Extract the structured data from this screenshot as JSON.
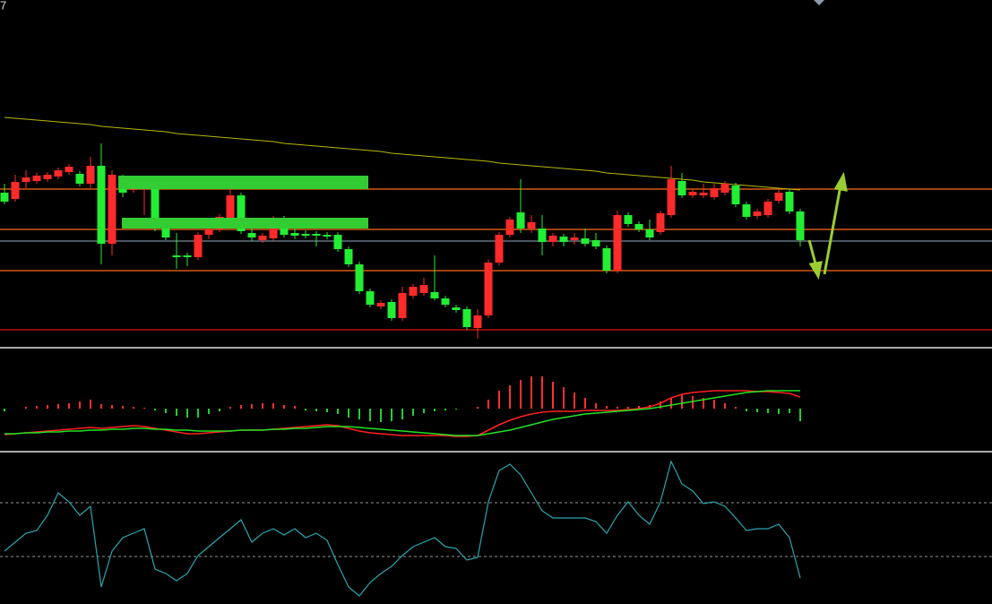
{
  "chart_data": [
    {
      "type": "candlestick",
      "title": "7",
      "ylim": [
        0,
        385
      ],
      "up_color": "#ff2a2a",
      "down_color": "#22ee33",
      "open": [
        170,
        163,
        182,
        183,
        185,
        188,
        193,
        191,
        180,
        200,
        113,
        187,
        173,
        175,
        175,
        130,
        100,
        100,
        98,
        123,
        129,
        140,
        167,
        125,
        117,
        119,
        141,
        125,
        124,
        124,
        123,
        123,
        107,
        90,
        60,
        43,
        48,
        30,
        55,
        58,
        59,
        52,
        42,
        40,
        19,
        33,
        92,
        123,
        148,
        130,
        130,
        115,
        121,
        117,
        119,
        117,
        108,
        83,
        145,
        135,
        129,
        126,
        145,
        183,
        167,
        167,
        165,
        170,
        178,
        157,
        144,
        145,
        161,
        171,
        149
      ],
      "high": [
        180,
        190,
        195,
        192,
        193,
        198,
        202,
        194,
        210,
        225,
        195,
        190,
        181,
        185,
        178,
        133,
        125,
        103,
        126,
        132,
        146,
        175,
        170,
        130,
        125,
        144,
        144,
        135,
        128,
        127,
        126,
        126,
        110,
        93,
        63,
        50,
        51,
        65,
        68,
        75,
        100,
        55,
        45,
        43,
        40,
        95,
        126,
        143,
        185,
        145,
        145,
        125,
        124,
        125,
        130,
        125,
        111,
        150,
        148,
        138,
        140,
        150,
        200,
        192,
        174,
        180,
        180,
        183,
        181,
        160,
        152,
        163,
        173,
        174,
        152
      ],
      "low": [
        157,
        160,
        175,
        180,
        182,
        185,
        190,
        177,
        175,
        90,
        100,
        165,
        170,
        145,
        127,
        117,
        85,
        88,
        95,
        118,
        126,
        135,
        124,
        116,
        114,
        116,
        120,
        118,
        119,
        110,
        118,
        104,
        87,
        57,
        42,
        40,
        27,
        27,
        52,
        55,
        50,
        42,
        36,
        17,
        7,
        30,
        89,
        120,
        125,
        125,
        100,
        110,
        110,
        112,
        110,
        107,
        80,
        80,
        132,
        126,
        117,
        123,
        142,
        164,
        164,
        164,
        162,
        167,
        154,
        140,
        141,
        142,
        158,
        146,
        110
      ],
      "close": [
        160,
        182,
        187,
        189,
        190,
        195,
        199,
        180,
        200,
        113,
        190,
        170,
        178,
        180,
        130,
        120,
        98,
        98,
        123,
        129,
        143,
        167,
        127,
        120,
        122,
        141,
        123,
        122,
        122,
        122,
        121,
        107,
        90,
        60,
        45,
        47,
        30,
        58,
        65,
        67,
        52,
        45,
        39,
        20,
        33,
        92,
        123,
        140,
        130,
        137,
        115,
        122,
        115,
        120,
        113,
        110,
        83,
        145,
        135,
        129,
        120,
        147,
        185,
        167,
        171,
        170,
        175,
        180,
        157,
        143,
        149,
        160,
        170,
        149,
        117
      ],
      "ma": {
        "color": "#b8b800",
        "values": [
          254,
          253,
          252,
          251,
          250,
          249,
          248,
          247,
          246,
          244,
          243,
          242,
          241,
          240,
          239,
          238,
          236,
          235,
          234,
          233,
          232,
          231,
          230,
          229,
          228,
          227,
          225,
          224,
          223,
          222,
          221,
          220,
          219,
          218,
          217,
          216,
          214,
          213,
          212,
          211,
          210,
          209,
          208,
          207,
          206,
          205,
          203,
          202,
          201,
          200,
          199,
          198,
          197,
          196,
          195,
          194,
          192,
          191,
          190,
          189,
          188,
          187,
          186,
          185,
          184,
          182,
          181,
          180,
          179,
          178,
          177,
          176,
          175,
          174,
          173
        ]
      },
      "hlines": [
        {
          "value": 174,
          "color": "#ff6a1a"
        },
        {
          "value": 129,
          "color": "#ff6a1a"
        },
        {
          "value": 83,
          "color": "#ff6a1a"
        },
        {
          "value": 17,
          "color": "#e01010"
        },
        {
          "value": 116,
          "color": "#7a8a9a"
        }
      ]
    },
    {
      "type": "macd",
      "ylim": [
        -49,
        66
      ],
      "histogram": {
        "up_color": "#ff3030",
        "down_color": "#20d030",
        "values": [
          -3,
          0,
          2,
          3,
          4,
          5,
          6,
          8,
          10,
          5,
          4,
          3,
          2,
          1,
          -2,
          -5,
          -8,
          -10,
          -10,
          -6,
          -3,
          2,
          4,
          5,
          6,
          6,
          4,
          3,
          -2,
          -3,
          -4,
          -6,
          -10,
          -12,
          -14,
          -15,
          -14,
          -12,
          -8,
          -5,
          -3,
          -2,
          -1,
          0,
          2,
          10,
          20,
          26,
          32,
          36,
          36,
          30,
          24,
          18,
          12,
          6,
          3,
          2,
          2,
          3,
          4,
          8,
          12,
          16,
          14,
          12,
          10,
          6,
          2,
          -3,
          -4,
          -5,
          -6,
          -5,
          -14
        ]
      },
      "series": [
        {
          "color": "#ff2020",
          "values": [
            -29,
            -28,
            -27,
            -26,
            -25,
            -24,
            -23,
            -22,
            -21,
            -22,
            -21,
            -20,
            -19,
            -20,
            -22,
            -24,
            -26,
            -28,
            -28,
            -27,
            -26,
            -25,
            -24,
            -24,
            -24,
            -23,
            -22,
            -21,
            -20,
            -19,
            -18,
            -19,
            -22,
            -25,
            -27,
            -28,
            -29,
            -30,
            -30,
            -30,
            -30,
            -30,
            -31,
            -31,
            -30,
            -24,
            -18,
            -13,
            -9,
            -6,
            -4,
            -3,
            -3,
            -3,
            -2,
            -2,
            -2,
            -2,
            -1,
            0,
            2,
            6,
            12,
            16,
            18,
            19,
            20,
            20,
            20,
            20,
            19,
            19,
            18,
            17,
            13
          ]
        },
        {
          "color": "#22e022",
          "values": [
            -28,
            -28,
            -27,
            -27,
            -26,
            -26,
            -25,
            -25,
            -24,
            -24,
            -23,
            -23,
            -22,
            -22,
            -23,
            -23,
            -24,
            -24,
            -25,
            -25,
            -25,
            -25,
            -24,
            -24,
            -24,
            -23,
            -23,
            -22,
            -22,
            -21,
            -20,
            -20,
            -20,
            -21,
            -22,
            -23,
            -24,
            -25,
            -26,
            -27,
            -28,
            -29,
            -30,
            -30,
            -30,
            -28,
            -26,
            -24,
            -21,
            -18,
            -15,
            -12,
            -10,
            -8,
            -6,
            -5,
            -4,
            -3,
            -2,
            -1,
            0,
            2,
            4,
            6,
            8,
            10,
            12,
            14,
            16,
            18,
            19,
            20,
            20,
            20,
            20
          ]
        }
      ]
    },
    {
      "type": "line",
      "ylim": [
        0,
        169
      ],
      "color": "#2aa6b0",
      "values": [
        59,
        69,
        79,
        82,
        99,
        124,
        114,
        99,
        109,
        19,
        59,
        74,
        79,
        84,
        39,
        34,
        26,
        34,
        54,
        64,
        74,
        84,
        94,
        69,
        79,
        84,
        77,
        84,
        74,
        79,
        71,
        44,
        19,
        9,
        24,
        34,
        42,
        54,
        64,
        69,
        74,
        64,
        62,
        49,
        52,
        114,
        149,
        156,
        144,
        124,
        104,
        96,
        96,
        96,
        96,
        92,
        79,
        99,
        114,
        99,
        89,
        114,
        159,
        134,
        126,
        112,
        114,
        109,
        96,
        82,
        84,
        84,
        89,
        74,
        29
      ],
      "hlines": [
        {
          "value": 113,
          "color": "#777777"
        },
        {
          "value": 53,
          "color": "#777777"
        }
      ]
    }
  ]
}
